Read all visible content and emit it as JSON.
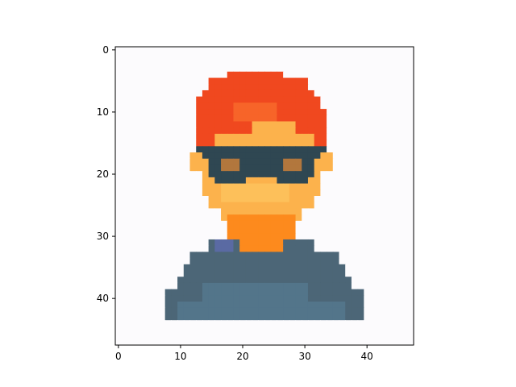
{
  "figure": {
    "type": "image",
    "extent": {
      "x_min": -0.5,
      "x_max": 47.5,
      "y_min": -0.5,
      "y_max": 47.5
    },
    "y_inverted": true,
    "x_ticks": [
      0,
      10,
      20,
      30,
      40
    ],
    "y_ticks": [
      0,
      10,
      20,
      30,
      40
    ],
    "x_tick_labels": [
      "0",
      "10",
      "20",
      "30",
      "40"
    ],
    "y_tick_labels": [
      "0",
      "10",
      "20",
      "30",
      "40"
    ],
    "background": "#ffffff"
  },
  "palette": {
    "bg": "#fcfbfd",
    "hair": "#f0481f",
    "hairLight": "#f76429",
    "skin": "#fcb24c",
    "skinLight": "#fdc05a",
    "neck": "#fd8a1d",
    "glasses": "#2f4752",
    "eye": "#b2773d",
    "shirt": "#4c6677",
    "shirtShade": "#53758a",
    "shirtBlue": "#5a6aa3"
  }
}
